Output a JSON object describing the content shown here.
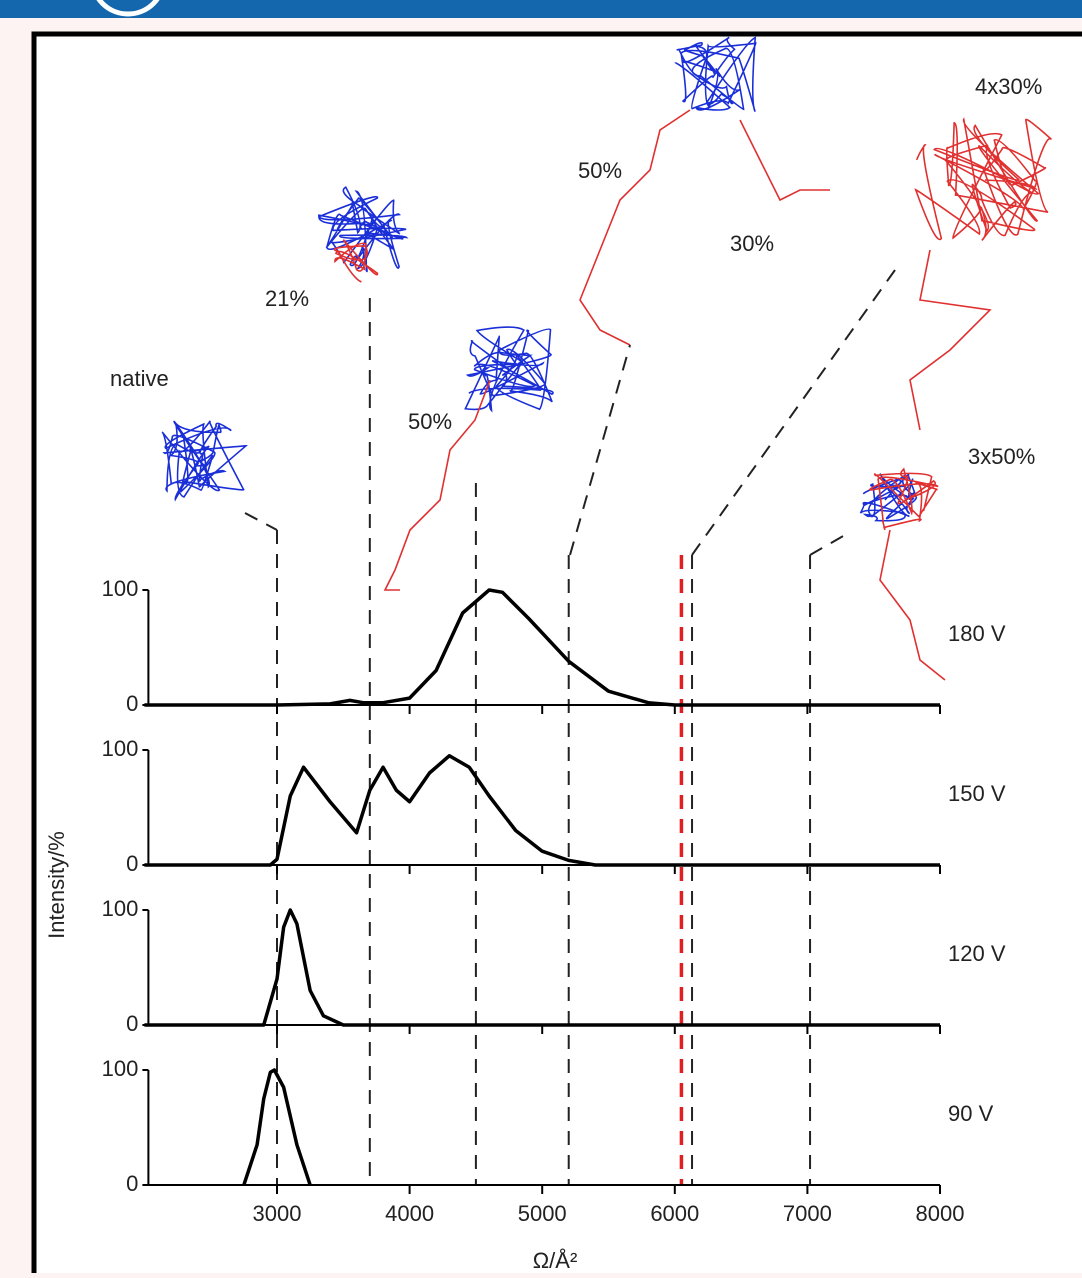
{
  "chart_data": {
    "type": "line",
    "y_label": "Intensity/%",
    "x_label": "Ω/Å²",
    "xlim": [
      2000,
      8000
    ],
    "xticks": [
      3000,
      4000,
      5000,
      6000,
      7000,
      8000
    ],
    "ylim": [
      0,
      100
    ],
    "yticks": [
      0,
      100
    ],
    "series": [
      {
        "name": "180 V",
        "color": "#000000",
        "x": [
          2000,
          3000,
          3400,
          3550,
          3650,
          3800,
          4000,
          4200,
          4400,
          4600,
          4700,
          4900,
          5200,
          5500,
          5800,
          6000,
          8000
        ],
        "values": [
          0,
          0,
          1,
          4,
          2,
          2,
          6,
          30,
          80,
          100,
          98,
          75,
          38,
          12,
          2,
          0,
          0
        ]
      },
      {
        "name": "150 V",
        "color": "#000000",
        "x": [
          2000,
          2950,
          3000,
          3100,
          3200,
          3400,
          3600,
          3700,
          3800,
          3900,
          4000,
          4150,
          4300,
          4450,
          4600,
          4800,
          5000,
          5200,
          5400,
          8000
        ],
        "values": [
          0,
          0,
          5,
          60,
          85,
          55,
          28,
          65,
          85,
          65,
          55,
          80,
          95,
          85,
          60,
          30,
          12,
          4,
          0,
          0
        ]
      },
      {
        "name": "120 V",
        "color": "#000000",
        "x": [
          2000,
          2900,
          3000,
          3050,
          3100,
          3150,
          3250,
          3350,
          3500,
          8000
        ],
        "values": [
          0,
          0,
          40,
          85,
          100,
          88,
          30,
          8,
          0,
          0
        ]
      },
      {
        "name": "90 V",
        "color": "#000000",
        "x": [
          2750,
          2850,
          2900,
          2950,
          2980,
          3050,
          3150,
          3250
        ],
        "values": [
          0,
          35,
          75,
          98,
          100,
          85,
          35,
          0
        ]
      }
    ],
    "reference_lines": [
      {
        "x": 3000,
        "color": "#222222"
      },
      {
        "x": 3700,
        "color": "#222222"
      },
      {
        "x": 4500,
        "color": "#222222"
      },
      {
        "x": 5200,
        "color": "#222222"
      },
      {
        "x": 6050,
        "color": "#e02020"
      },
      {
        "x": 6130,
        "color": "#222222"
      },
      {
        "x": 7020,
        "color": "#222222"
      }
    ],
    "annotations": [
      "native",
      "21%",
      "50%",
      "50%",
      "30%",
      "4x30%",
      "3x50%"
    ]
  }
}
